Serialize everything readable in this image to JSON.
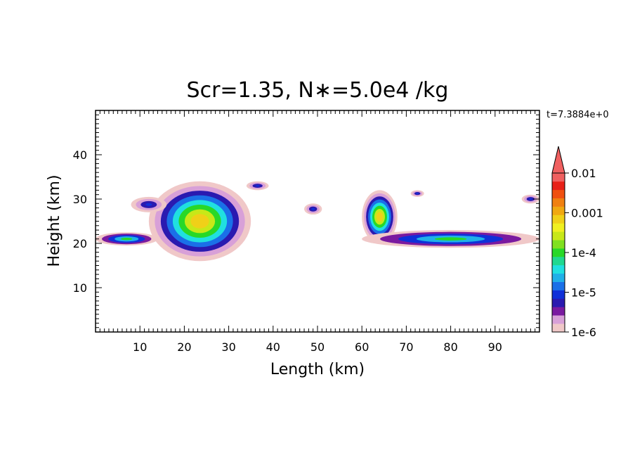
{
  "chart_data": {
    "type": "heatmap",
    "title": "Scr=1.35, N∗=5.0e4 /kg",
    "time_label": "t=7.3884e+0",
    "xlabel": "Length  (km)",
    "ylabel": "Height  (km)",
    "xlim": [
      0,
      100
    ],
    "ylim": [
      0,
      50
    ],
    "xticks": [
      10,
      20,
      30,
      40,
      50,
      60,
      70,
      80,
      90
    ],
    "yticks": [
      10,
      20,
      30,
      40
    ],
    "colorbar": {
      "scale": "log",
      "range": [
        1e-06,
        0.01
      ],
      "extend": "max",
      "labels": [
        "0.01",
        "0.001",
        "1e-4",
        "1e-5",
        "1e-6"
      ],
      "label_values": [
        0.01,
        0.001,
        0.0001,
        1e-05,
        1e-06
      ],
      "colors": [
        "#f0c8c8",
        "#d8a0d8",
        "#7a1aa0",
        "#2a1ab0",
        "#1030d8",
        "#1a70e8",
        "#20b0e8",
        "#20e0e0",
        "#20d890",
        "#28d828",
        "#80e020",
        "#c8e818",
        "#f0f020",
        "#f0d018",
        "#f0a810",
        "#f08010",
        "#f05010",
        "#e82018",
        "#f06060"
      ]
    },
    "regions": [
      {
        "name": "main-cloud",
        "x": [
          12,
          35
        ],
        "y": [
          16,
          34
        ],
        "peak": 0.001
      },
      {
        "name": "left-layer",
        "x": [
          0,
          14
        ],
        "y": [
          19.5,
          22.5
        ],
        "peak": 0.0001
      },
      {
        "name": "cloud-top-left",
        "x": [
          8,
          16
        ],
        "y": [
          27,
          30.5
        ],
        "peak": 1e-05
      },
      {
        "name": "patch-36km",
        "x": [
          34,
          39
        ],
        "y": [
          32,
          34
        ],
        "peak": 1e-05
      },
      {
        "name": "patch-50km",
        "x": [
          47,
          51
        ],
        "y": [
          26.5,
          29
        ],
        "peak": 1e-05
      },
      {
        "name": "column-65km",
        "x": [
          60,
          68
        ],
        "y": [
          20,
          32
        ],
        "peak": 0.001
      },
      {
        "name": "right-layer",
        "x": [
          60,
          100
        ],
        "y": [
          19,
          23
        ],
        "peak": 0.0001
      },
      {
        "name": "patch-72km",
        "x": [
          71,
          74
        ],
        "y": [
          30.5,
          32
        ],
        "peak": 1e-05
      },
      {
        "name": "patch-98km",
        "x": [
          96,
          100
        ],
        "y": [
          29,
          31
        ],
        "peak": 1e-05
      }
    ]
  }
}
